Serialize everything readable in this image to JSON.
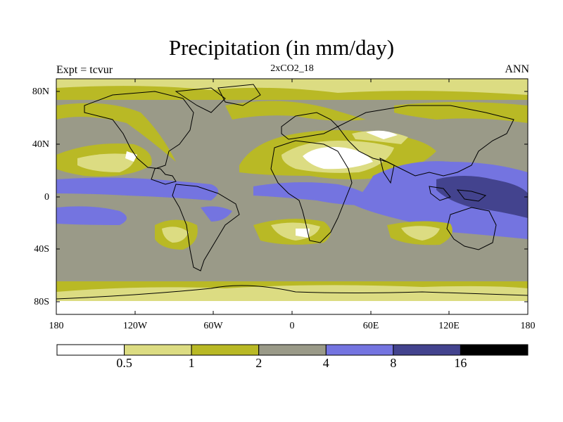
{
  "title": "Precipitation (in mm/day)",
  "subtitle": "2xCO2_18",
  "left_label": "Expt = tcvur",
  "right_label": "ANN",
  "lat_ticks": [
    "80N",
    "40N",
    "0",
    "40S",
    "80S"
  ],
  "lon_ticks": [
    "180",
    "120W",
    "60W",
    "0",
    "60E",
    "120E",
    "180"
  ],
  "colorbar": {
    "colors": [
      "#ffffff",
      "#dcdc82",
      "#b9b925",
      "#9a9a88",
      "#7474e0",
      "#43438e",
      "#000000"
    ],
    "labels": [
      "0.5",
      "1",
      "2",
      "4",
      "8",
      "16"
    ]
  }
}
